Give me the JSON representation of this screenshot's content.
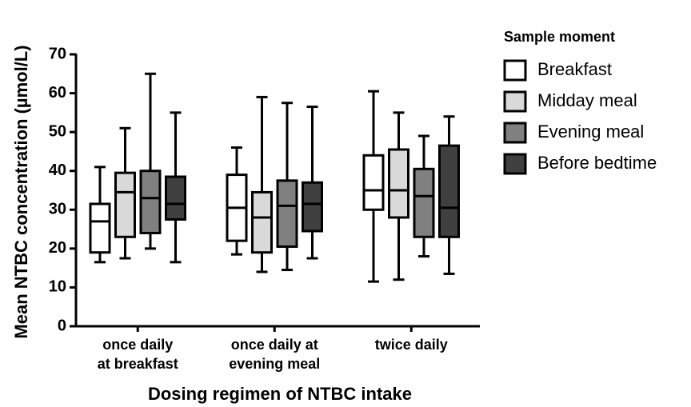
{
  "chart_data": {
    "type": "box",
    "ylabel": "Mean NTBC concentration (µmol/L)",
    "xlabel": "Dosing regimen of NTBC intake",
    "legend_title": "Sample moment",
    "legend": "right",
    "categories": [
      [
        "once daily",
        "at breakfast"
      ],
      [
        "once daily at",
        "evening meal"
      ],
      [
        "twice daily"
      ]
    ],
    "ylim": [
      0,
      70
    ],
    "yticks": [
      0,
      10,
      20,
      30,
      40,
      50,
      60,
      70
    ],
    "series": [
      {
        "name": "Breakfast",
        "color": "#ffffff",
        "values": [
          {
            "min": 16.5,
            "q1": 19,
            "median": 27,
            "q3": 31.5,
            "max": 41
          },
          {
            "min": 18.5,
            "q1": 22,
            "median": 30.5,
            "q3": 39,
            "max": 46
          },
          {
            "min": 11.5,
            "q1": 30,
            "median": 35,
            "q3": 44,
            "max": 60.5
          }
        ]
      },
      {
        "name": "Midday meal",
        "color": "#d9d9d9",
        "values": [
          {
            "min": 17.5,
            "q1": 23,
            "median": 34.5,
            "q3": 39.5,
            "max": 51
          },
          {
            "min": 14,
            "q1": 19,
            "median": 28,
            "q3": 34.5,
            "max": 59
          },
          {
            "min": 12,
            "q1": 28,
            "median": 35,
            "q3": 45.5,
            "max": 55
          }
        ]
      },
      {
        "name": "Evening meal",
        "color": "#808080",
        "values": [
          {
            "min": 20,
            "q1": 24,
            "median": 33,
            "q3": 40,
            "max": 65
          },
          {
            "min": 14.5,
            "q1": 20.5,
            "median": 31,
            "q3": 37.5,
            "max": 57.5
          },
          {
            "min": 18,
            "q1": 23,
            "median": 33.5,
            "q3": 40.5,
            "max": 49
          }
        ]
      },
      {
        "name": "Before bedtime",
        "color": "#404040",
        "values": [
          {
            "min": 16.5,
            "q1": 27.5,
            "median": 31.5,
            "q3": 38.5,
            "max": 55
          },
          {
            "min": 17.5,
            "q1": 24.5,
            "median": 31.5,
            "q3": 37,
            "max": 56.5
          },
          {
            "min": 13.5,
            "q1": 23,
            "median": 30.5,
            "q3": 46.5,
            "max": 54
          }
        ]
      }
    ]
  }
}
